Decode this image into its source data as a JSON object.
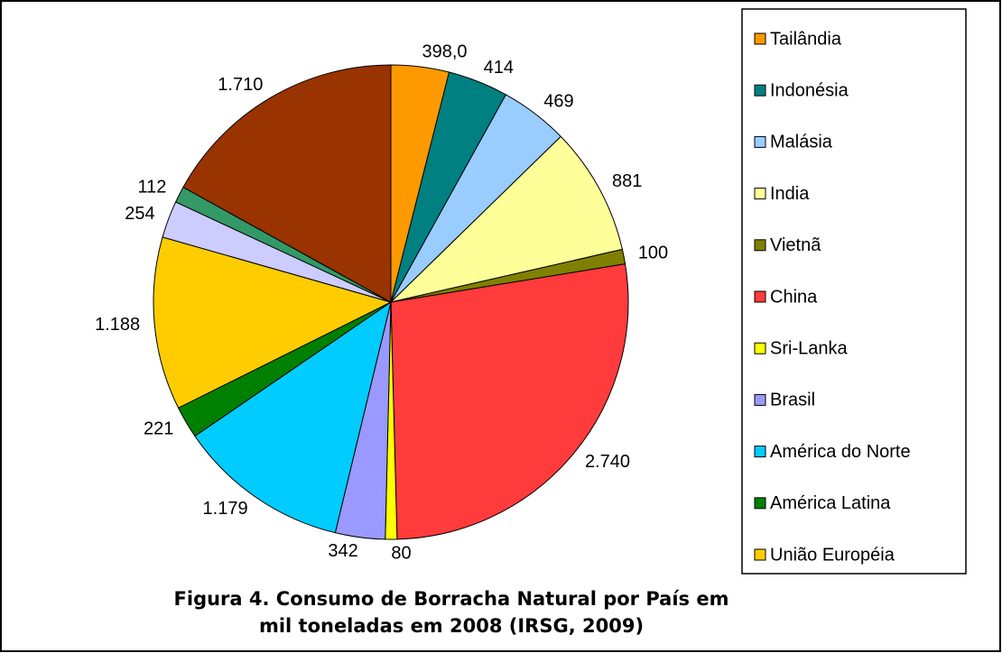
{
  "chart_data": {
    "type": "pie",
    "caption": [
      "Figura 4. Consumo de Borracha Natural por País em",
      "mil toneladas em 2008 (IRSG, 2009)"
    ],
    "categories": [
      "Tailândia",
      "Indonésia",
      "Malásia",
      "India",
      "Vietnã",
      "China",
      "Sri-Lanka",
      "Brasil",
      "América do Norte",
      "América Latina",
      "União Européia",
      null,
      null,
      null
    ],
    "values": [
      398,
      414,
      469,
      881,
      100,
      2740,
      80,
      342,
      1179,
      221,
      1188,
      254,
      112,
      1710
    ],
    "value_labels": [
      "398,0",
      "414",
      "469",
      "881",
      "100",
      "2.740",
      "80",
      "342",
      "1.179",
      "221",
      "1.188",
      "254",
      "112",
      "1.710"
    ],
    "colors": [
      "#ff9900",
      "#008080",
      "#99ccff",
      "#ffff99",
      "#808000",
      "#ff3b3b",
      "#ffff00",
      "#9999ff",
      "#00ccff",
      "#008000",
      "#ffcc00",
      "#ccccff",
      "#339966",
      "#993300"
    ],
    "legend": "right"
  }
}
